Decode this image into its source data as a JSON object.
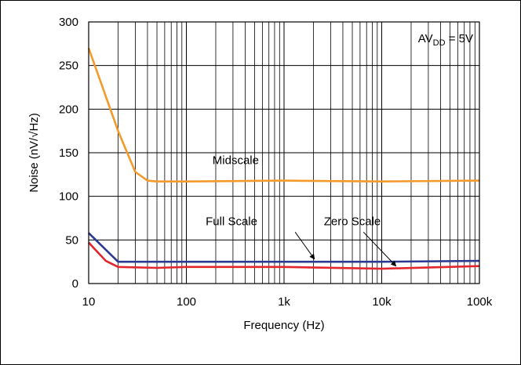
{
  "chart_data": {
    "type": "line",
    "xlabel": "Frequency (Hz)",
    "ylabel": "Noise (nV/√Hz)",
    "x_scale": "log",
    "xlim": [
      10,
      100000
    ],
    "ylim": [
      0,
      300
    ],
    "grid": true,
    "x_ticks": [
      {
        "value": 10,
        "label": "10"
      },
      {
        "value": 100,
        "label": "100"
      },
      {
        "value": 1000,
        "label": "1k"
      },
      {
        "value": 10000,
        "label": "10k"
      },
      {
        "value": 100000,
        "label": "100k"
      }
    ],
    "y_ticks": [
      0,
      50,
      100,
      150,
      200,
      250,
      300
    ],
    "annotation": {
      "base": "AV",
      "subscript": "DD",
      "suffix": " = 5V"
    },
    "series": [
      {
        "name": "Midscale",
        "color": "#f39a2b",
        "x": [
          10,
          20,
          30,
          40,
          50,
          100,
          1000,
          10000,
          100000
        ],
        "y": [
          270,
          175,
          128,
          118,
          117,
          117,
          118,
          117,
          118
        ]
      },
      {
        "name": "Full Scale",
        "color": "#2b3990",
        "x": [
          10,
          20,
          100,
          1000,
          10000,
          100000
        ],
        "y": [
          58,
          25,
          25,
          25,
          25,
          26
        ]
      },
      {
        "name": "Zero Scale",
        "color": "#e1262d",
        "x": [
          10,
          15,
          20,
          50,
          100,
          1000,
          10000,
          100000
        ],
        "y": [
          47,
          26,
          19,
          18,
          19,
          19,
          17,
          20
        ]
      }
    ]
  }
}
